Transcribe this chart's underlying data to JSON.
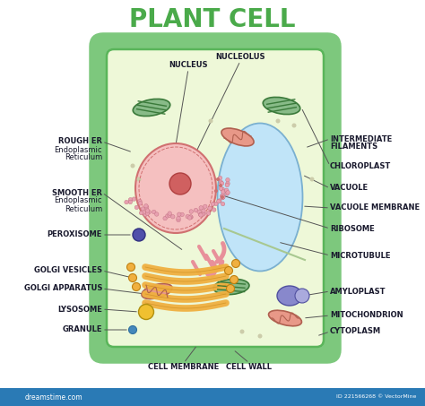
{
  "title": "PLANT CELL",
  "title_color": "#4aaa4a",
  "title_fontsize": 20,
  "bg_color": "#ffffff",
  "cell_wall_color": "#7dc87d",
  "cell_membrane_color": "#5ab55a",
  "cytoplasm_color": "#eef8d8",
  "nucleus_fill": "#f5c0c0",
  "nucleus_border": "#d07070",
  "nucleolus_fill": "#d06060",
  "rough_er_dot": "#e8a0b0",
  "smooth_er_color": "#e8909a",
  "vacuole_fill": "#c0e4f8",
  "vacuole_border": "#7ab0d0",
  "chloroplast_fill": "#88bb88",
  "chloroplast_border": "#3a7a3a",
  "chloroplast_stripe": "#3a7a3a",
  "golgi_color": "#f0b040",
  "golgi_border": "#c08010",
  "lysosome_fill": "#f0c030",
  "lysosome_border": "#b09010",
  "mitochondria_fill": "#e89888",
  "mitochondria_border": "#b06050",
  "amyloplast_fill": "#8888cc",
  "amyloplast_border": "#5050a0",
  "ribosome_fill": "#cc7070",
  "peroxisome_fill": "#5050aa",
  "granule_fill": "#4488bb",
  "microtubule_color": "#a8c890",
  "label_fontsize": 6.0,
  "label_color": "#1a1a2e",
  "line_color": "#555555",
  "bottom_bar_color": "#2a7ab5",
  "watermark": "dreamstime.com",
  "footer_right": "ID 221566268 © VectorMine"
}
